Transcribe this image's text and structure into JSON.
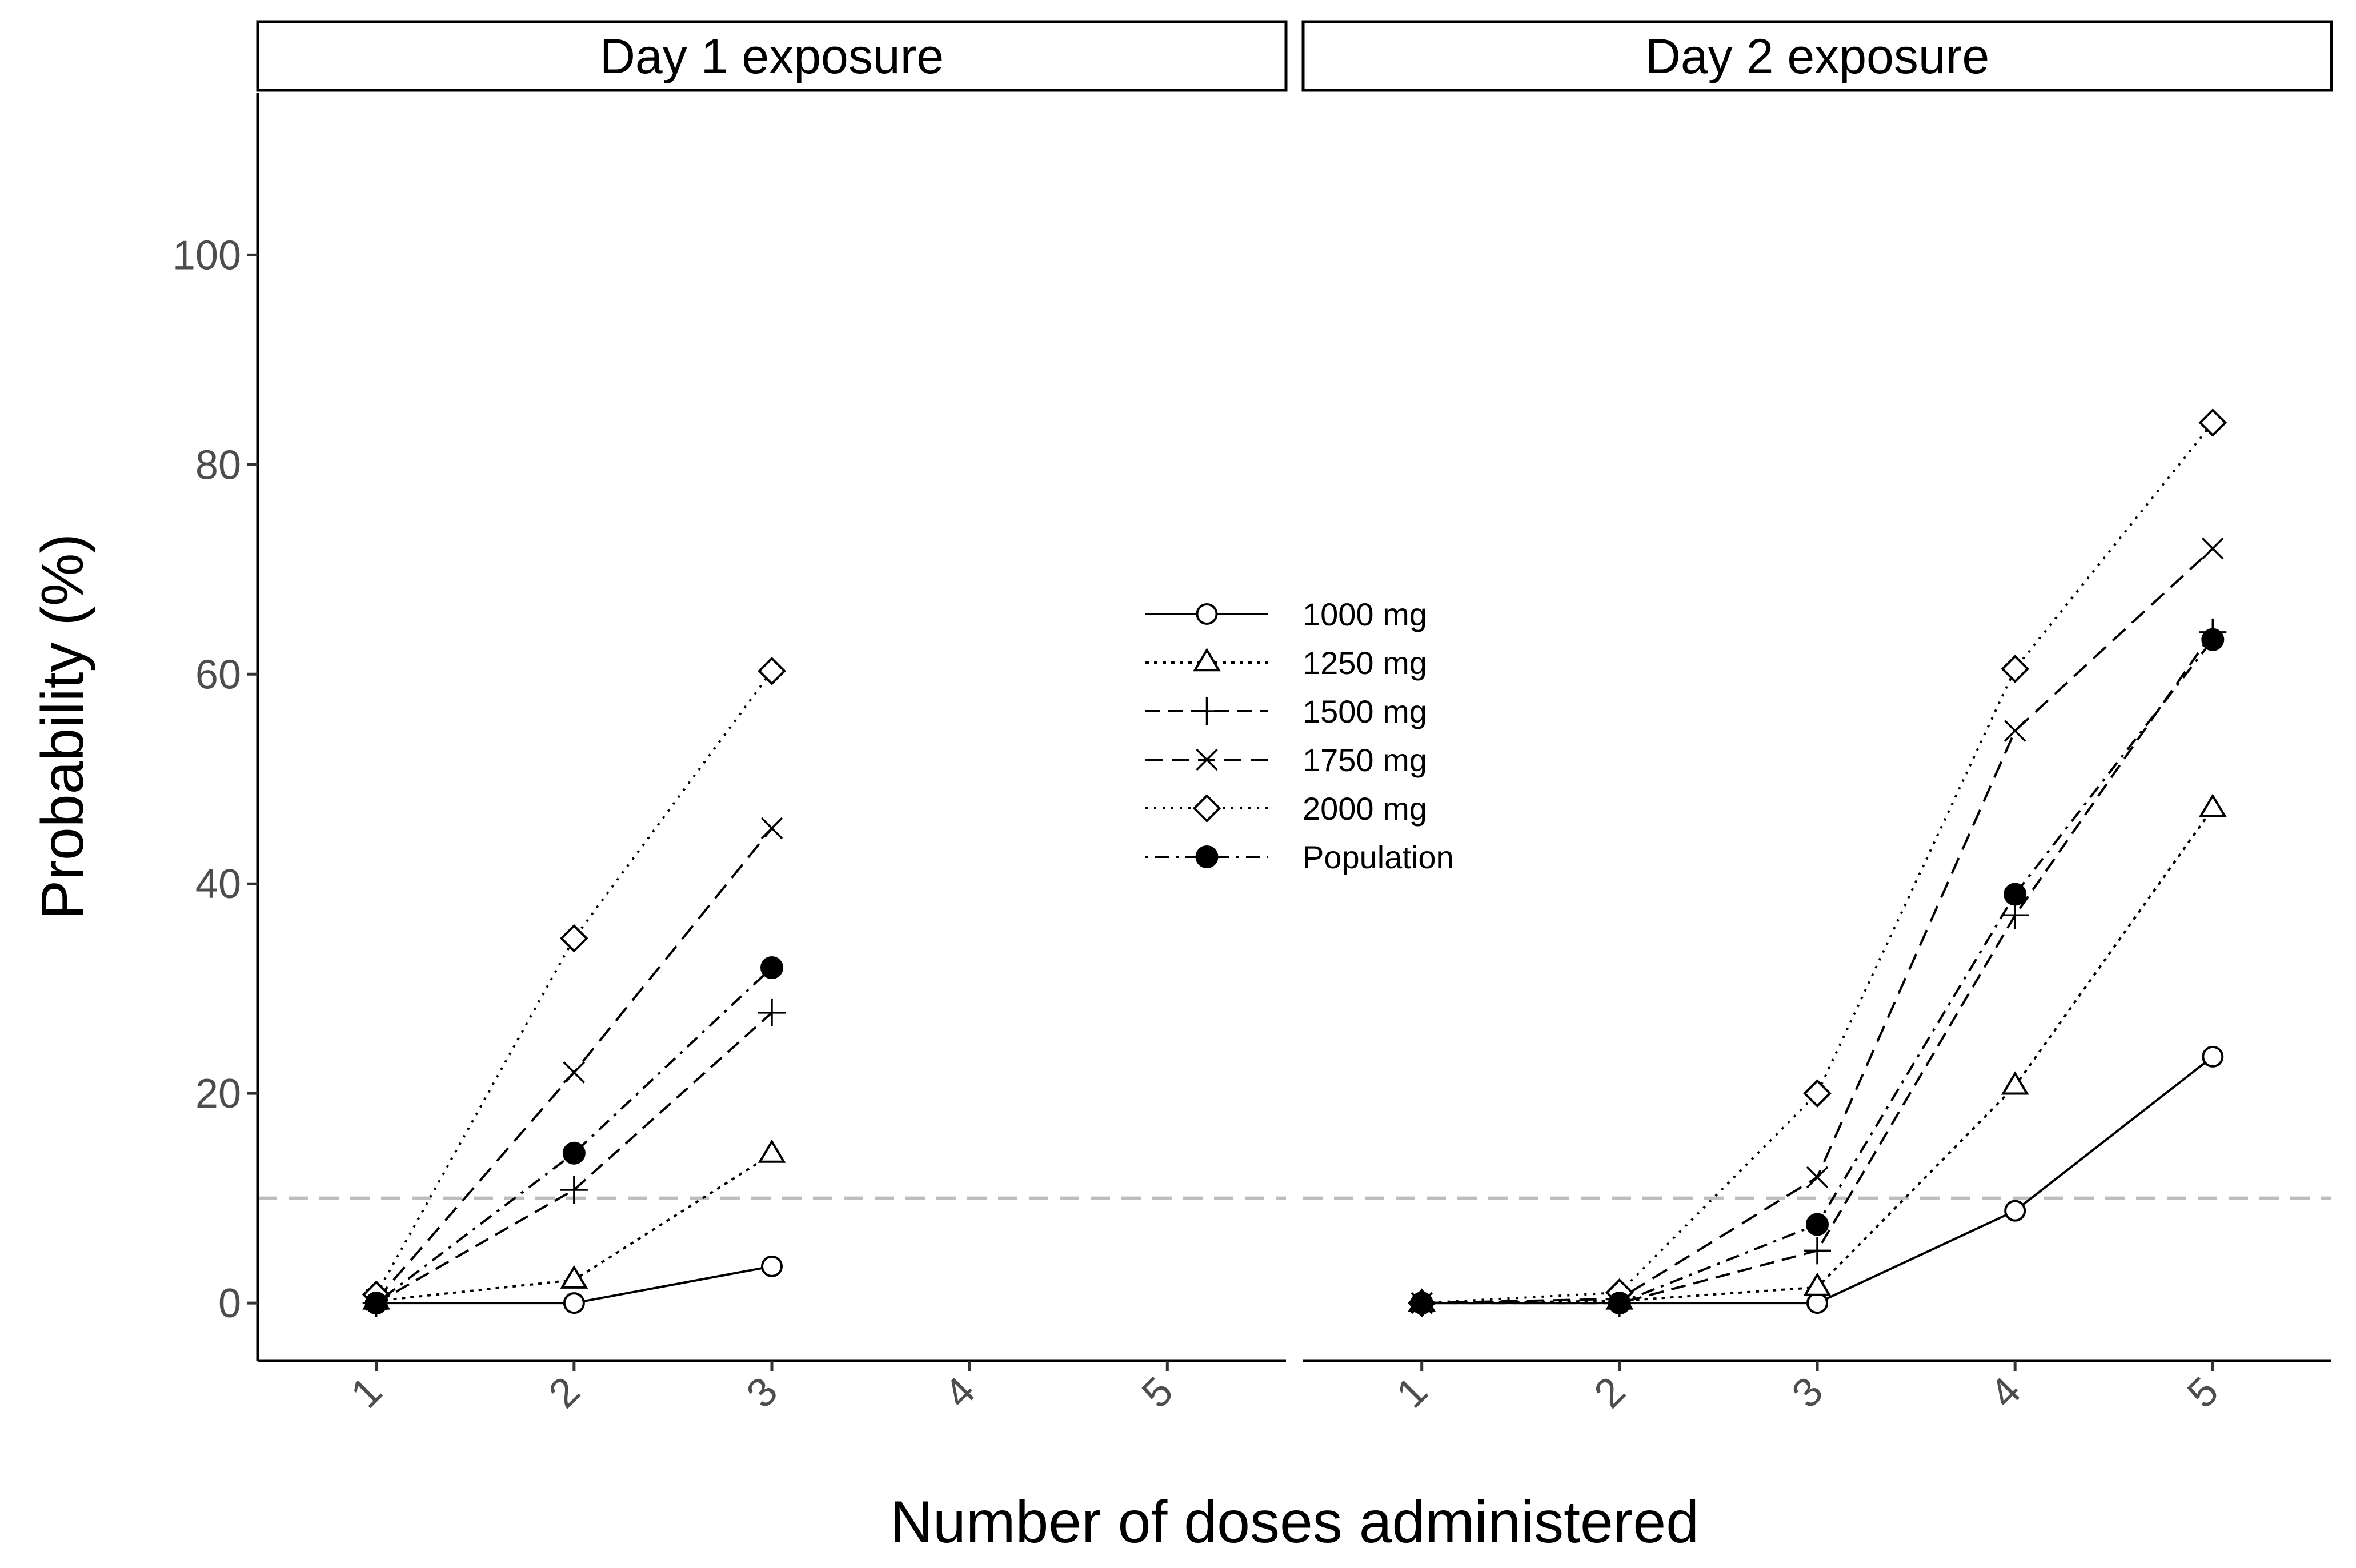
{
  "chart_data": {
    "type": "line",
    "facets": [
      "Day 1 exposure",
      "Day 2 exposure"
    ],
    "xlabel": "Number of doses administered",
    "ylabel": "Probability (%)",
    "x_ticks": [
      1,
      2,
      3,
      4,
      5
    ],
    "y_ticks": [
      0,
      20,
      40,
      60,
      80,
      100
    ],
    "xlim": [
      0.4,
      5.6
    ],
    "ylim": [
      -5.5,
      115.5
    ],
    "reference_line": {
      "y": 10,
      "color": "#bdbdbd",
      "style": "dashed"
    },
    "legend_placement": "center",
    "series": [
      {
        "name": "1000  mg",
        "marker": "circle-open",
        "line": "solid",
        "facets": [
          {
            "x": [
              1,
              2,
              3
            ],
            "y": [
              0,
              0,
              3.5
            ]
          },
          {
            "x": [
              1,
              2,
              3,
              4,
              5
            ],
            "y": [
              0,
              0,
              0,
              8.8,
              23.5
            ]
          }
        ]
      },
      {
        "name": "1250  mg",
        "marker": "triangle-open",
        "line": "dotted",
        "facets": [
          {
            "x": [
              1,
              2,
              3
            ],
            "y": [
              0.2,
              2.2,
              14.2
            ]
          },
          {
            "x": [
              1,
              2,
              3,
              4,
              5
            ],
            "y": [
              0,
              0.2,
              1.5,
              20.7,
              47.2
            ]
          }
        ]
      },
      {
        "name": "1500  mg",
        "marker": "plus",
        "line": "dashed",
        "facets": [
          {
            "x": [
              1,
              2,
              3
            ],
            "y": [
              0,
              10.8,
              27.7
            ]
          },
          {
            "x": [
              1,
              2,
              3,
              4,
              5
            ],
            "y": [
              0,
              0,
              5,
              37,
              64
            ]
          }
        ]
      },
      {
        "name": "1750  mg",
        "marker": "cross",
        "line": "longdash",
        "facets": [
          {
            "x": [
              1,
              2,
              3
            ],
            "y": [
              0.3,
              22,
              45.3
            ]
          },
          {
            "x": [
              1,
              2,
              3,
              4,
              5
            ],
            "y": [
              0,
              0.4,
              12,
              54.6,
              72
            ]
          }
        ]
      },
      {
        "name": "2000  mg",
        "marker": "diamond-open",
        "line": "dotted-fine",
        "facets": [
          {
            "x": [
              1,
              2,
              3
            ],
            "y": [
              0.8,
              34.8,
              60.3
            ]
          },
          {
            "x": [
              1,
              2,
              3,
              4,
              5
            ],
            "y": [
              0,
              1,
              20,
              60.5,
              84
            ]
          }
        ]
      },
      {
        "name": "Population",
        "marker": "circle-filled",
        "line": "dotdash",
        "facets": [
          {
            "x": [
              1,
              2,
              3
            ],
            "y": [
              0,
              14.3,
              32
            ]
          },
          {
            "x": [
              1,
              2,
              3,
              4,
              5
            ],
            "y": [
              0,
              0,
              7.5,
              39,
              63.3
            ]
          }
        ]
      }
    ]
  }
}
